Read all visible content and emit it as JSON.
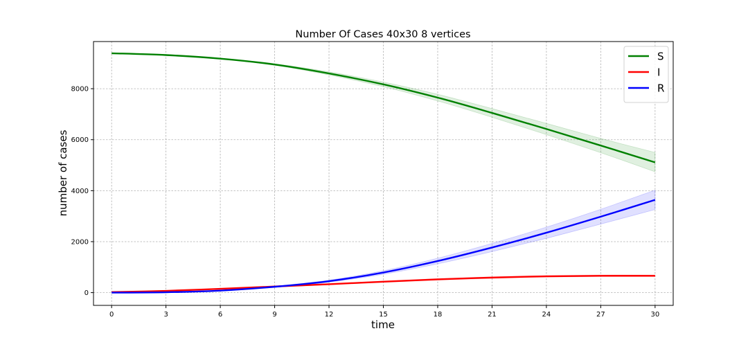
{
  "chart_data": {
    "type": "line",
    "title": "Number Of Cases 40x30 8 vertices",
    "xlabel": "time",
    "ylabel": "number of cases",
    "xlim": [
      -1,
      31
    ],
    "ylim": [
      -500,
      9850
    ],
    "xticks": [
      0,
      3,
      6,
      9,
      12,
      15,
      18,
      21,
      24,
      27,
      30
    ],
    "yticks": [
      0,
      2000,
      4000,
      6000,
      8000
    ],
    "grid": true,
    "legend": "top-right",
    "x": [
      0,
      3,
      6,
      9,
      12,
      15,
      18,
      21,
      24,
      27,
      30
    ],
    "series": [
      {
        "name": "S",
        "color": "#008000",
        "values": [
          9390,
          9320,
          9180,
          8950,
          8600,
          8170,
          7650,
          7050,
          6420,
          5770,
          5110
        ],
        "lower": [
          9390,
          9320,
          9170,
          8920,
          8540,
          8080,
          7520,
          6880,
          6200,
          5490,
          4740
        ],
        "upper": [
          9390,
          9320,
          9190,
          8980,
          8660,
          8260,
          7780,
          7220,
          6640,
          6050,
          5500
        ]
      },
      {
        "name": "I",
        "color": "#ff0000",
        "values": [
          20,
          70,
          150,
          240,
          330,
          430,
          520,
          590,
          640,
          660,
          660
        ],
        "lower": [
          20,
          65,
          140,
          225,
          310,
          405,
          490,
          560,
          610,
          630,
          630
        ],
        "upper": [
          20,
          75,
          160,
          255,
          350,
          455,
          550,
          620,
          670,
          690,
          690
        ]
      },
      {
        "name": "R",
        "color": "#0000ff",
        "values": [
          0,
          15,
          80,
          230,
          450,
          790,
          1240,
          1770,
          2350,
          2980,
          3640
        ],
        "lower": [
          0,
          12,
          70,
          205,
          410,
          720,
          1130,
          1610,
          2130,
          2690,
          3260
        ],
        "upper": [
          0,
          18,
          90,
          255,
          490,
          860,
          1350,
          1930,
          2570,
          3270,
          4020
        ]
      }
    ]
  }
}
